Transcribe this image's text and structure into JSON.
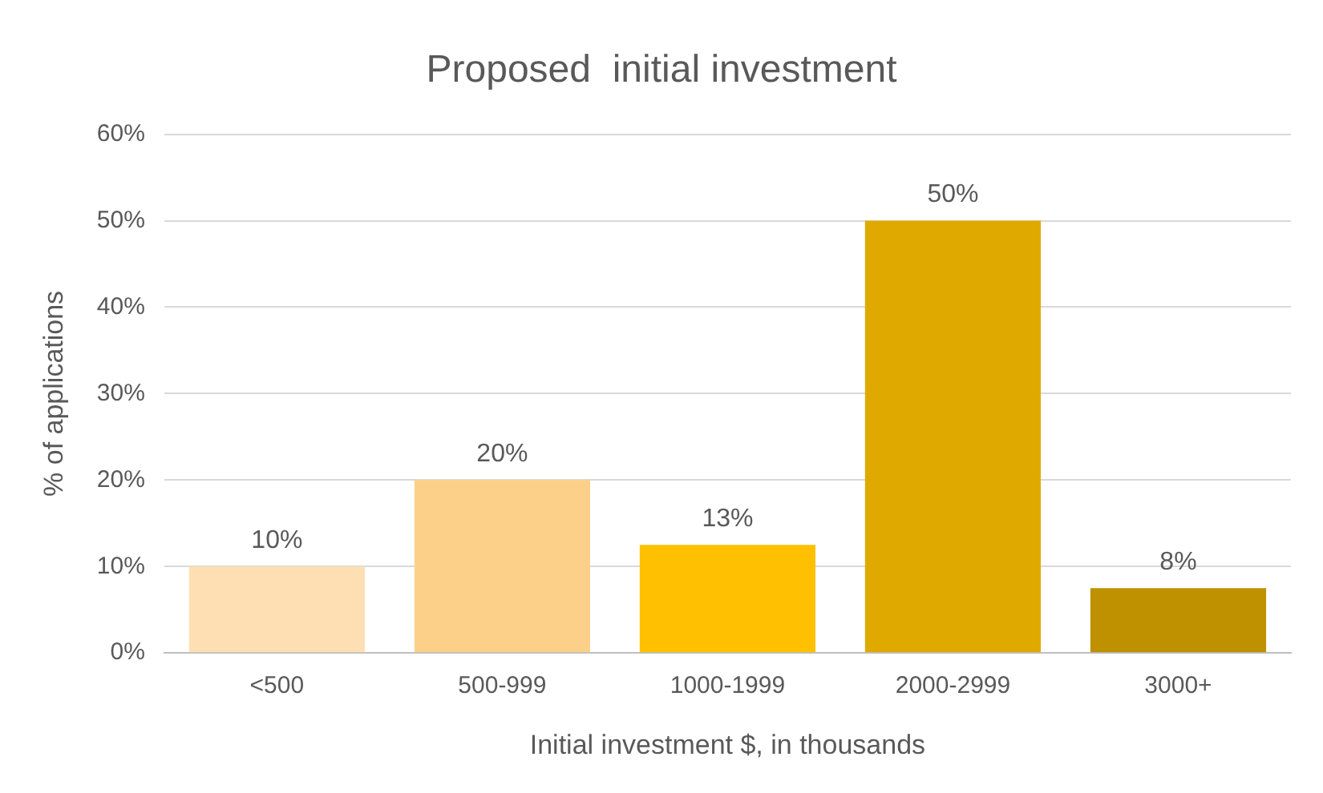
{
  "chart_data": {
    "type": "bar",
    "title": "Proposed  initial investment",
    "xlabel": "Initial investment $, in thousands",
    "ylabel": "% of applications",
    "categories": [
      "<500",
      "500-999",
      "1000-1999",
      "2000-2999",
      "3000+"
    ],
    "values": [
      10,
      20,
      12.5,
      50,
      7.5
    ],
    "colors": [
      "#fedfb4",
      "#fdd08a",
      "#fec000",
      "#e0a900",
      "#bf9000"
    ],
    "value_labels": [
      "10%",
      "20%",
      "13%",
      "50%",
      "8%"
    ],
    "ylim": [
      0,
      60
    ],
    "yticks": [
      {
        "value": 0,
        "label": "0%"
      },
      {
        "value": 10,
        "label": "10%"
      },
      {
        "value": 20,
        "label": "20%"
      },
      {
        "value": 30,
        "label": "30%"
      },
      {
        "value": 40,
        "label": "40%"
      },
      {
        "value": 50,
        "label": "50%"
      },
      {
        "value": 60,
        "label": "60%"
      }
    ],
    "grid": "y",
    "legend": false
  }
}
